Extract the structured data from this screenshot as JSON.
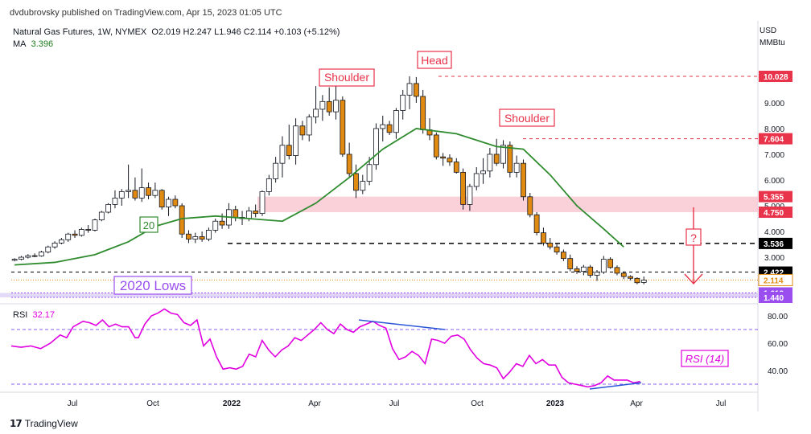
{
  "header": {
    "published": "dvdubrovsky published on TradingView.com, Apr 15, 2023 01:05 UTC",
    "symbol": "Natural Gas Futures, 1W, NYMEX",
    "ohlc": "O2.019 H2.247 L1.946 C2.114 +0.103 (+5.12%)",
    "ma_label": "MA",
    "ma_value": "3.396",
    "currency_line1": "USD",
    "currency_line2": "MMBtu"
  },
  "footer": {
    "brand": "TradingView"
  },
  "colors": {
    "up": "#ffffff",
    "down": "#e08a12",
    "ma": "#2e8b2e",
    "rsi": "#e000e0",
    "zone_pink": "#f8c0cc",
    "zone_lavender": "#dcd0f8",
    "annot_red": "#e8334a",
    "annot_purple": "#9a4ef0"
  },
  "chart_data": [
    {
      "type": "candlestick",
      "title": "Natural Gas Futures, 1W, NYMEX",
      "ylabel": "USD/MMBtu",
      "ylim": [
        0.8,
        11.0
      ],
      "x_ticks": [
        "Jul",
        "Oct",
        "2022",
        "Apr",
        "Jul",
        "Oct",
        "2023",
        "Apr",
        "Jul"
      ],
      "y_ticks": [
        3.0,
        4.0,
        5.0,
        6.0,
        7.0,
        8.0,
        9.0
      ],
      "price_labels": [
        {
          "text": "10.028",
          "value": 10.028,
          "color": "#e8334a"
        },
        {
          "text": "7.604",
          "value": 7.604,
          "color": "#e8334a"
        },
        {
          "text": "5.355",
          "value": 5.355,
          "color": "#e8334a"
        },
        {
          "text": "4.750",
          "value": 4.75,
          "color": "#e8334a"
        },
        {
          "text": "3.536",
          "value": 3.536,
          "color": "#000000"
        },
        {
          "text": "2.422",
          "value": 2.422,
          "color": "#000000"
        },
        {
          "text": "2.114",
          "value": 2.114,
          "color": "#ffffff"
        },
        {
          "text": "1.612",
          "value": 1.612,
          "color": "#9a4ef0"
        },
        {
          "text": "1.440",
          "value": 1.44,
          "color": "#9a4ef0"
        }
      ],
      "annotations": {
        "head": "Head",
        "shoulder_left": "Shoulder",
        "shoulder_right": "Shoulder",
        "lows": "2020 Lows",
        "ma_period": "20",
        "question": "?"
      },
      "zones": [
        {
          "from": 4.75,
          "to": 5.355,
          "color": "#f8c0cc"
        },
        {
          "from": 1.44,
          "to": 1.612,
          "color": "#dcd0f8"
        }
      ],
      "levels": [
        {
          "value": 10.028,
          "style": "dashed",
          "color": "#e8334a"
        },
        {
          "value": 7.604,
          "style": "dashed",
          "color": "#e8334a"
        },
        {
          "value": 3.536,
          "style": "dashed",
          "color": "#000000"
        },
        {
          "value": 2.422,
          "style": "dashed",
          "color": "#000000"
        },
        {
          "value": 2.114,
          "style": "dotted",
          "color": "#e08a12"
        }
      ],
      "candles": [
        [
          2.88,
          2.96,
          2.84,
          2.92
        ],
        [
          2.92,
          3.05,
          2.88,
          3.0
        ],
        [
          3.0,
          3.12,
          2.95,
          3.06
        ],
        [
          3.06,
          3.15,
          3.0,
          3.05
        ],
        [
          3.05,
          3.25,
          3.02,
          3.2
        ],
        [
          3.2,
          3.45,
          3.15,
          3.4
        ],
        [
          3.4,
          3.62,
          3.33,
          3.55
        ],
        [
          3.55,
          3.75,
          3.5,
          3.68
        ],
        [
          3.68,
          3.95,
          3.6,
          3.9
        ],
        [
          3.9,
          4.05,
          3.75,
          3.85
        ],
        [
          3.85,
          4.15,
          3.8,
          4.08
        ],
        [
          4.08,
          4.25,
          3.95,
          4.05
        ],
        [
          4.05,
          4.5,
          4.0,
          4.45
        ],
        [
          4.45,
          4.8,
          4.4,
          4.75
        ],
        [
          4.75,
          5.1,
          4.7,
          5.05
        ],
        [
          5.05,
          5.6,
          4.9,
          5.3
        ],
        [
          5.3,
          5.65,
          5.0,
          5.55
        ],
        [
          5.55,
          6.6,
          5.3,
          5.6
        ],
        [
          5.6,
          6.1,
          5.2,
          5.3
        ],
        [
          5.3,
          6.45,
          5.15,
          5.7
        ],
        [
          5.7,
          5.9,
          5.25,
          5.4
        ],
        [
          5.4,
          5.9,
          5.3,
          5.6
        ],
        [
          5.6,
          5.65,
          4.85,
          4.95
        ],
        [
          4.95,
          5.35,
          4.6,
          5.25
        ],
        [
          5.25,
          5.4,
          4.9,
          5.0
        ],
        [
          5.0,
          5.1,
          3.75,
          3.9
        ],
        [
          3.9,
          4.05,
          3.55,
          3.7
        ],
        [
          3.7,
          3.95,
          3.55,
          3.8
        ],
        [
          3.8,
          4.0,
          3.6,
          3.7
        ],
        [
          3.7,
          4.15,
          3.62,
          4.05
        ],
        [
          4.05,
          4.5,
          3.95,
          4.4
        ],
        [
          4.4,
          4.7,
          4.1,
          4.25
        ],
        [
          4.25,
          5.1,
          4.1,
          4.85
        ],
        [
          4.85,
          5.0,
          4.4,
          4.55
        ],
        [
          4.55,
          4.8,
          4.25,
          4.5
        ],
        [
          4.5,
          4.95,
          4.4,
          4.8
        ],
        [
          4.8,
          5.05,
          4.55,
          4.7
        ],
        [
          4.7,
          5.6,
          4.6,
          5.55
        ],
        [
          5.55,
          6.2,
          5.4,
          6.05
        ],
        [
          6.05,
          6.9,
          5.9,
          6.65
        ],
        [
          6.65,
          7.7,
          6.1,
          7.35
        ],
        [
          7.35,
          8.15,
          6.8,
          6.95
        ],
        [
          6.95,
          8.4,
          6.6,
          8.1
        ],
        [
          8.1,
          8.3,
          7.55,
          7.75
        ],
        [
          7.75,
          8.55,
          7.5,
          8.45
        ],
        [
          8.45,
          9.65,
          8.2,
          8.75
        ],
        [
          8.75,
          9.3,
          8.3,
          9.05
        ],
        [
          9.05,
          9.6,
          8.5,
          8.65
        ],
        [
          8.65,
          9.65,
          8.35,
          9.1
        ],
        [
          9.1,
          9.25,
          6.9,
          7.0
        ],
        [
          7.0,
          7.45,
          6.1,
          6.25
        ],
        [
          6.25,
          6.6,
          5.3,
          5.6
        ],
        [
          5.6,
          6.2,
          5.45,
          5.95
        ],
        [
          5.95,
          6.9,
          5.8,
          6.6
        ],
        [
          6.6,
          8.2,
          6.4,
          8.0
        ],
        [
          8.0,
          8.5,
          7.5,
          8.15
        ],
        [
          8.15,
          8.3,
          7.75,
          7.85
        ],
        [
          7.85,
          8.8,
          7.6,
          8.7
        ],
        [
          8.7,
          9.5,
          8.35,
          9.3
        ],
        [
          9.3,
          10.03,
          8.75,
          9.75
        ],
        [
          9.75,
          10.0,
          9.0,
          9.25
        ],
        [
          9.25,
          9.5,
          7.8,
          7.95
        ],
        [
          7.95,
          8.4,
          7.55,
          7.75
        ],
        [
          7.75,
          7.85,
          6.8,
          6.9
        ],
        [
          6.9,
          7.05,
          6.55,
          6.85
        ],
        [
          6.85,
          7.0,
          6.55,
          6.7
        ],
        [
          6.7,
          6.85,
          6.25,
          6.3
        ],
        [
          6.3,
          6.45,
          4.85,
          5.05
        ],
        [
          5.05,
          5.85,
          4.8,
          5.75
        ],
        [
          5.75,
          6.5,
          5.6,
          6.25
        ],
        [
          6.25,
          6.85,
          5.85,
          6.35
        ],
        [
          6.35,
          7.25,
          6.1,
          7.0
        ],
        [
          7.0,
          7.6,
          6.55,
          6.65
        ],
        [
          6.65,
          7.55,
          6.45,
          7.35
        ],
        [
          7.35,
          7.5,
          6.1,
          6.3
        ],
        [
          6.3,
          6.95,
          6.1,
          6.65
        ],
        [
          6.65,
          6.8,
          5.2,
          5.35
        ],
        [
          5.35,
          5.5,
          4.55,
          4.65
        ],
        [
          4.65,
          4.75,
          3.85,
          3.95
        ],
        [
          3.95,
          4.15,
          3.45,
          3.55
        ],
        [
          3.55,
          3.75,
          3.3,
          3.4
        ],
        [
          3.4,
          3.55,
          3.1,
          3.2
        ],
        [
          3.2,
          3.3,
          2.85,
          2.95
        ],
        [
          2.95,
          3.1,
          2.45,
          2.55
        ],
        [
          2.55,
          2.65,
          2.35,
          2.45
        ],
        [
          2.45,
          2.7,
          2.3,
          2.62
        ],
        [
          2.62,
          2.7,
          2.2,
          2.3
        ],
        [
          2.3,
          2.5,
          2.08,
          2.42
        ],
        [
          2.42,
          3.05,
          2.35,
          2.92
        ],
        [
          2.92,
          3.0,
          2.55,
          2.6
        ],
        [
          2.6,
          2.68,
          2.3,
          2.38
        ],
        [
          2.38,
          2.45,
          2.15,
          2.25
        ],
        [
          2.25,
          2.3,
          2.1,
          2.18
        ],
        [
          2.18,
          2.22,
          1.95,
          2.01
        ],
        [
          2.02,
          2.25,
          1.95,
          2.11
        ]
      ],
      "ma": [
        [
          0,
          2.7
        ],
        [
          6,
          2.8
        ],
        [
          12,
          3.1
        ],
        [
          17,
          3.6
        ],
        [
          21,
          4.2
        ],
        [
          25,
          4.5
        ],
        [
          30,
          4.6
        ],
        [
          35,
          4.5
        ],
        [
          40,
          4.4
        ],
        [
          45,
          5.1
        ],
        [
          50,
          6.1
        ],
        [
          55,
          7.2
        ],
        [
          60,
          8.0
        ],
        [
          66,
          7.8
        ],
        [
          72,
          7.3
        ],
        [
          76,
          7.2
        ],
        [
          80,
          6.2
        ],
        [
          84,
          5.0
        ],
        [
          88,
          4.1
        ],
        [
          91,
          3.4
        ]
      ]
    },
    {
      "type": "line",
      "title": "RSI",
      "series": [
        {
          "name": "RSI (14)",
          "last": "32.17"
        }
      ],
      "ylim": [
        25,
        90
      ],
      "y_ticks": [
        40.0,
        60.0,
        80.0
      ],
      "levels": [
        70,
        30
      ],
      "rsi": [
        [
          0,
          58
        ],
        [
          3,
          57
        ],
        [
          6,
          58
        ],
        [
          9,
          56
        ],
        [
          12,
          60
        ],
        [
          15,
          66
        ],
        [
          17,
          64
        ],
        [
          19,
          72
        ],
        [
          22,
          76
        ],
        [
          24,
          75
        ],
        [
          26,
          73
        ],
        [
          28,
          77
        ],
        [
          30,
          72
        ],
        [
          32,
          74
        ],
        [
          34,
          72
        ],
        [
          36,
          72
        ],
        [
          38,
          64
        ],
        [
          39,
          64
        ],
        [
          41,
          74
        ],
        [
          43,
          80
        ],
        [
          45,
          82
        ],
        [
          47,
          85
        ],
        [
          49,
          82
        ],
        [
          51,
          81
        ],
        [
          53,
          75
        ],
        [
          55,
          73
        ],
        [
          57,
          77
        ],
        [
          59,
          58
        ],
        [
          61,
          63
        ],
        [
          63,
          50
        ],
        [
          65,
          41
        ],
        [
          67,
          42
        ],
        [
          69,
          41
        ],
        [
          71,
          43
        ],
        [
          73,
          52
        ],
        [
          75,
          50
        ],
        [
          77,
          62
        ],
        [
          79,
          55
        ],
        [
          81,
          50
        ],
        [
          83,
          55
        ],
        [
          85,
          58
        ],
        [
          87,
          64
        ],
        [
          89,
          62
        ],
        [
          91,
          66
        ],
        [
          93,
          70
        ],
        [
          95,
          75
        ],
        [
          97,
          70
        ],
        [
          99,
          67
        ],
        [
          101,
          74
        ],
        [
          103,
          70
        ],
        [
          105,
          68
        ],
        [
          107,
          72
        ],
        [
          109,
          74
        ],
        [
          111,
          76
        ],
        [
          113,
          73
        ],
        [
          115,
          71
        ],
        [
          117,
          56
        ],
        [
          119,
          48
        ],
        [
          121,
          50
        ],
        [
          123,
          54
        ],
        [
          125,
          51
        ],
        [
          127,
          45
        ],
        [
          129,
          63
        ],
        [
          131,
          62
        ],
        [
          133,
          60
        ],
        [
          135,
          65
        ],
        [
          137,
          66
        ],
        [
          139,
          63
        ],
        [
          141,
          55
        ],
        [
          143,
          49
        ],
        [
          145,
          45
        ],
        [
          147,
          44
        ],
        [
          149,
          42
        ],
        [
          151,
          34
        ],
        [
          153,
          39
        ],
        [
          155,
          45
        ],
        [
          157,
          43
        ],
        [
          159,
          51
        ],
        [
          161,
          45
        ],
        [
          163,
          48
        ],
        [
          165,
          44
        ],
        [
          167,
          44
        ],
        [
          169,
          35
        ],
        [
          171,
          31
        ],
        [
          173,
          30
        ],
        [
          175,
          29
        ],
        [
          177,
          28
        ],
        [
          179,
          29
        ],
        [
          181,
          31
        ],
        [
          183,
          36
        ],
        [
          185,
          33
        ],
        [
          187,
          33
        ],
        [
          189,
          33
        ],
        [
          191,
          31
        ],
        [
          193,
          32
        ]
      ],
      "annotations": {
        "label": "RSI (14)"
      }
    }
  ]
}
